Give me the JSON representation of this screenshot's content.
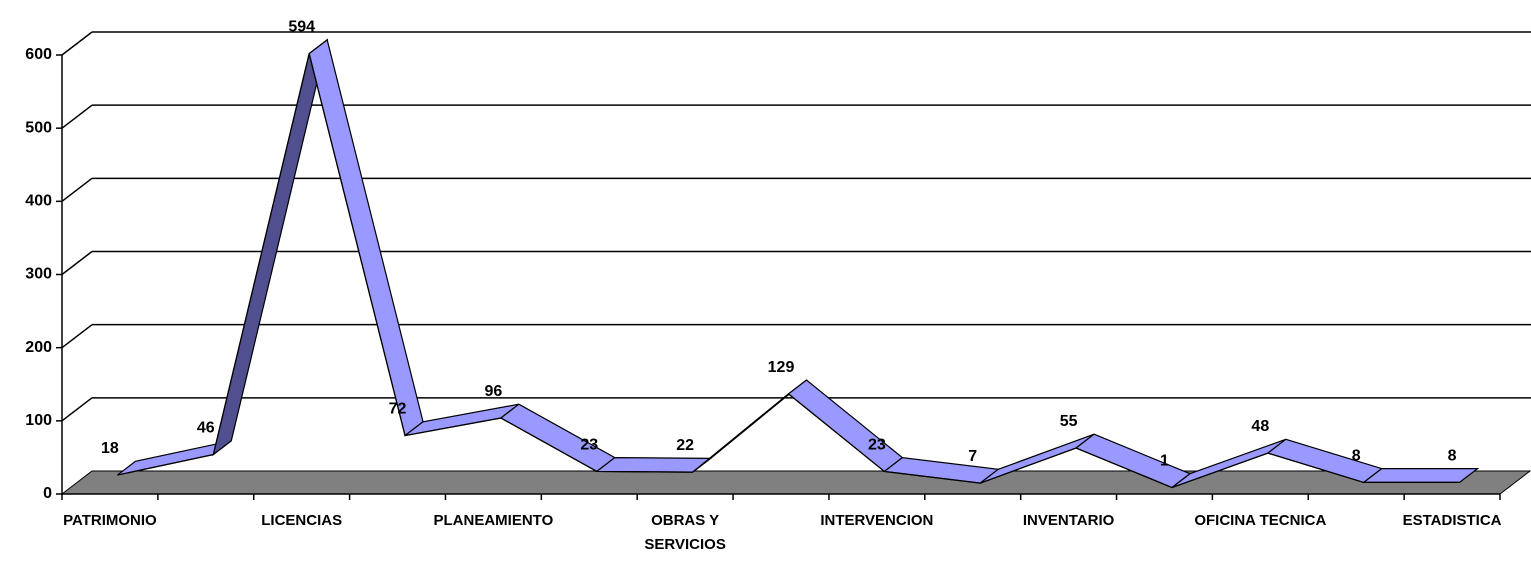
{
  "chart_data": {
    "type": "line3d",
    "categories": [
      "PATRIMONIO",
      null,
      "LICENCIAS",
      null,
      "PLANEAMIENTO",
      null,
      "OBRAS Y SERVICIOS",
      null,
      "INTERVENCION",
      null,
      "INVENTARIO",
      null,
      "OFICINA TECNICA",
      null,
      "ESTADISTICA"
    ],
    "values": [
      18,
      46,
      594,
      72,
      96,
      23,
      22,
      129,
      23,
      7,
      55,
      1,
      48,
      8,
      8
    ],
    "color": "#9999ff",
    "shade_color": "#505090",
    "floor_color": "#808080",
    "ylim": [
      0,
      600
    ],
    "yticks": [
      0,
      100,
      200,
      300,
      400,
      500,
      600
    ],
    "grid": true
  }
}
